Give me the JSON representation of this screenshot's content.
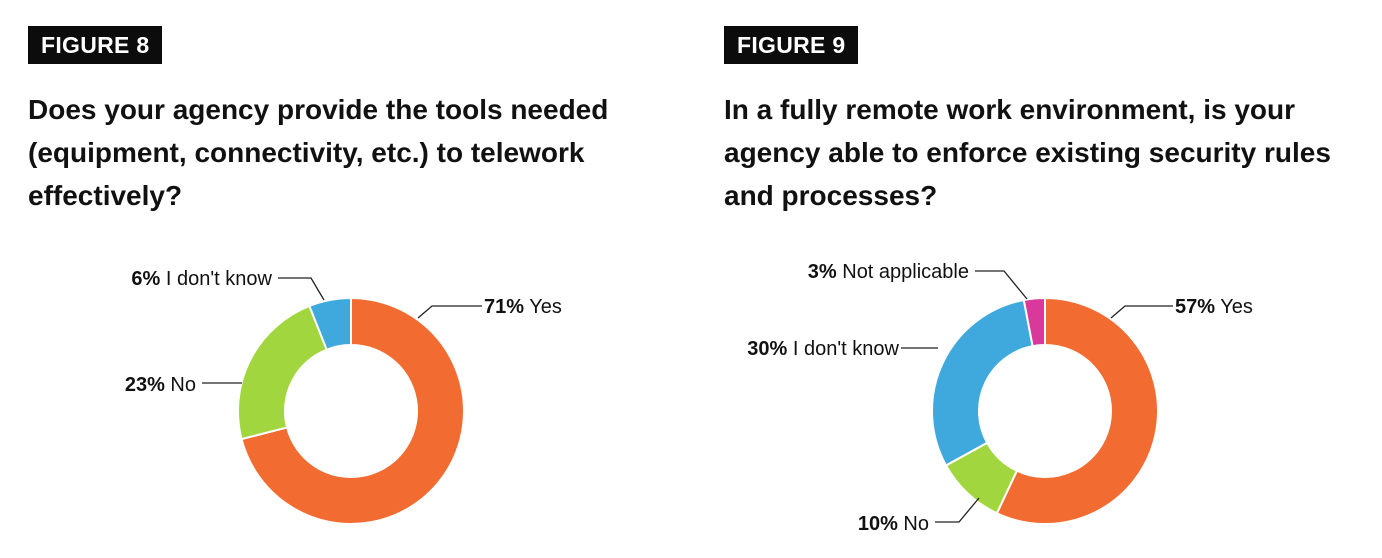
{
  "figures": [
    {
      "label": "FIGURE 8",
      "question": "Does your agency provide the tools needed (equipment, connectivity, etc.) to telework effectively?"
    },
    {
      "label": "FIGURE 9",
      "question": "In a fully remote work environment, is your agency able to enforce existing security rules and processes?"
    }
  ],
  "chart_data": [
    {
      "type": "pie",
      "variant": "donut",
      "title": "Does your agency provide the tools needed (equipment, connectivity, etc.) to telework effectively?",
      "slices": [
        {
          "label": "Yes",
          "value": 71,
          "display": "71%",
          "color": "#f26b31"
        },
        {
          "label": "No",
          "value": 23,
          "display": "23%",
          "color": "#a2d63f"
        },
        {
          "label": "I don't know",
          "value": 6,
          "display": "6%",
          "color": "#3fa9de"
        }
      ]
    },
    {
      "type": "pie",
      "variant": "donut",
      "title": "In a fully remote work environment, is your agency able to enforce existing security rules and processes?",
      "slices": [
        {
          "label": "Yes",
          "value": 57,
          "display": "57%",
          "color": "#f26b31"
        },
        {
          "label": "No",
          "value": 10,
          "display": "10%",
          "color": "#a2d63f"
        },
        {
          "label": "I don't know",
          "value": 30,
          "display": "30%",
          "color": "#3fa9de"
        },
        {
          "label": "Not applicable",
          "value": 3,
          "display": "3%",
          "color": "#d9399a"
        }
      ]
    }
  ]
}
